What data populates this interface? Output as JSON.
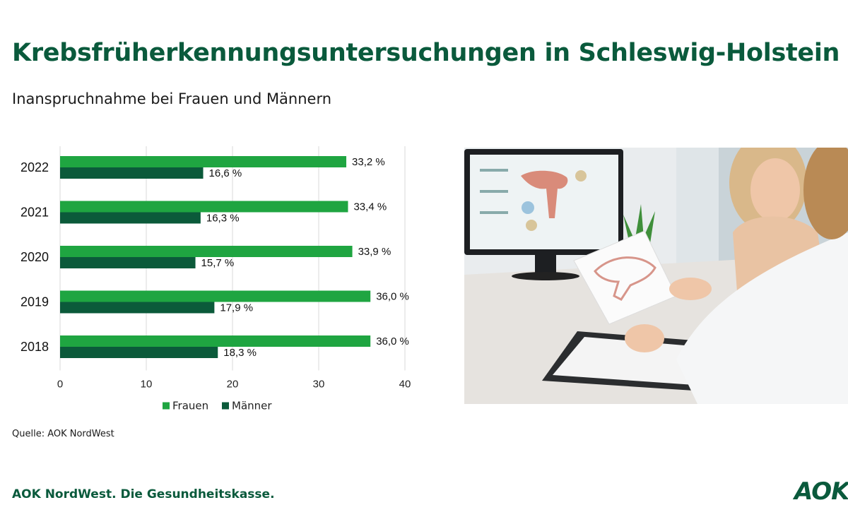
{
  "title": "Krebsfrüherkennungsuntersuchungen in Schleswig-Holstein",
  "subtitle": "Inanspruchnahme bei Frauen und Männern",
  "source": "Quelle: AOK NordWest",
  "footer": "AOK NordWest. Die Gesundheitskasse.",
  "logo_text": "AOK",
  "colors": {
    "brand": "#0a5a3c",
    "frauen": "#1fa541",
    "maenner": "#0b5a3a"
  },
  "photo": {
    "icon": "medical-consultation-photo",
    "description_hidden": ""
  },
  "chart_data": {
    "type": "bar",
    "orientation": "horizontal",
    "categories": [
      "2022",
      "2021",
      "2020",
      "2019",
      "2018"
    ],
    "series": [
      {
        "name": "Frauen",
        "values": [
          33.2,
          33.4,
          33.9,
          36.0,
          36.0
        ],
        "labels": [
          "33,2 %",
          "33,4 %",
          "33,9 %",
          "36,0 %",
          "36,0 %"
        ]
      },
      {
        "name": "Männer",
        "values": [
          16.6,
          16.3,
          15.7,
          17.9,
          18.3
        ],
        "labels": [
          "16,6 %",
          "16,3 %",
          "15,7 %",
          "17,9 %",
          "18,3 %"
        ]
      }
    ],
    "xlim": [
      0,
      40
    ],
    "xticks": [
      "0",
      "10",
      "20",
      "30",
      "40"
    ],
    "grid": true,
    "legend": "bottom"
  }
}
